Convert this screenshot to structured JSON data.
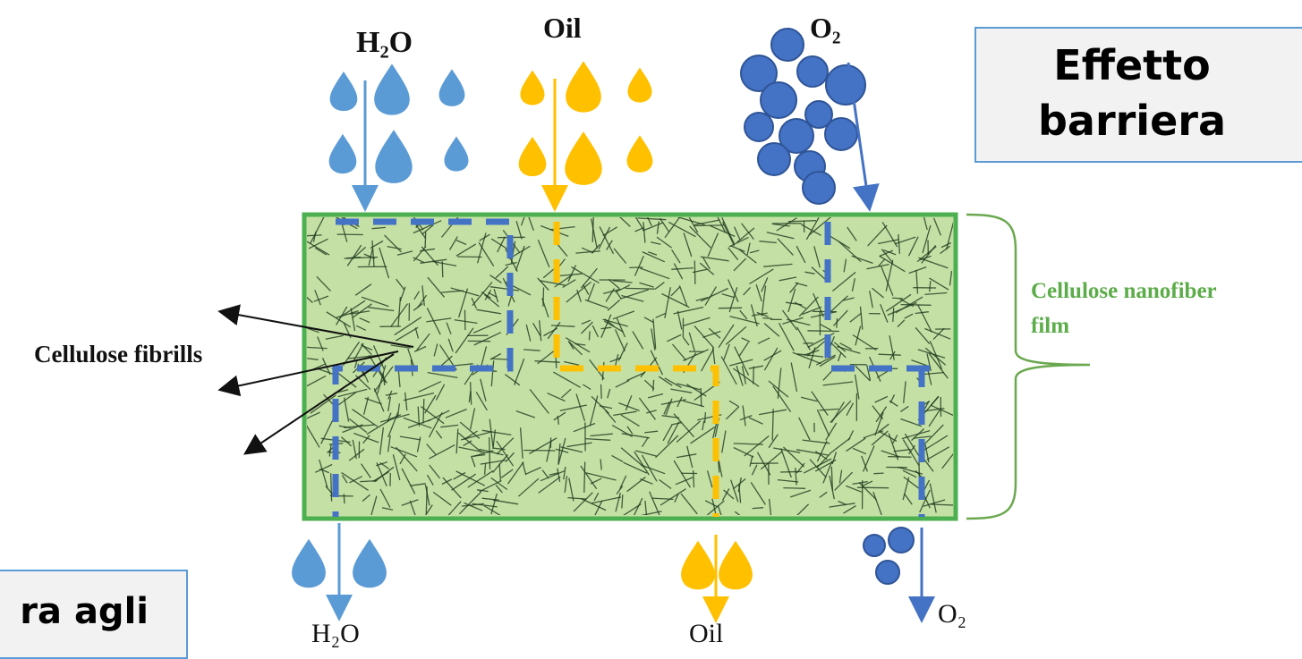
{
  "diagram": {
    "top_labels": {
      "water": "H₂O",
      "oil": "Oil",
      "oxygen": "O₂"
    },
    "bottom_labels": {
      "water": "H₂O",
      "oil": "Oil",
      "oxygen": "O₂"
    },
    "fibrils_label": "Cellulose fibrills",
    "film_label_line1": "Cellulose nanofiber",
    "film_label_line2": "film",
    "barrier_box_line1": "Effetto",
    "barrier_box_line2": "barriera",
    "bottom_box_text": "ra agli"
  },
  "colors": {
    "water": "#5b9bd5",
    "oil": "#ffc000",
    "oxygen": "#4472c4",
    "oxygen_stroke": "#2f5597",
    "film_border": "#4caf50",
    "film_fill": "#c5e0a5",
    "fibers": "#1e3a1e",
    "film_text": "#5cad4a",
    "box_fill": "#f2f2f2",
    "box_border": "#5b9bd5"
  }
}
